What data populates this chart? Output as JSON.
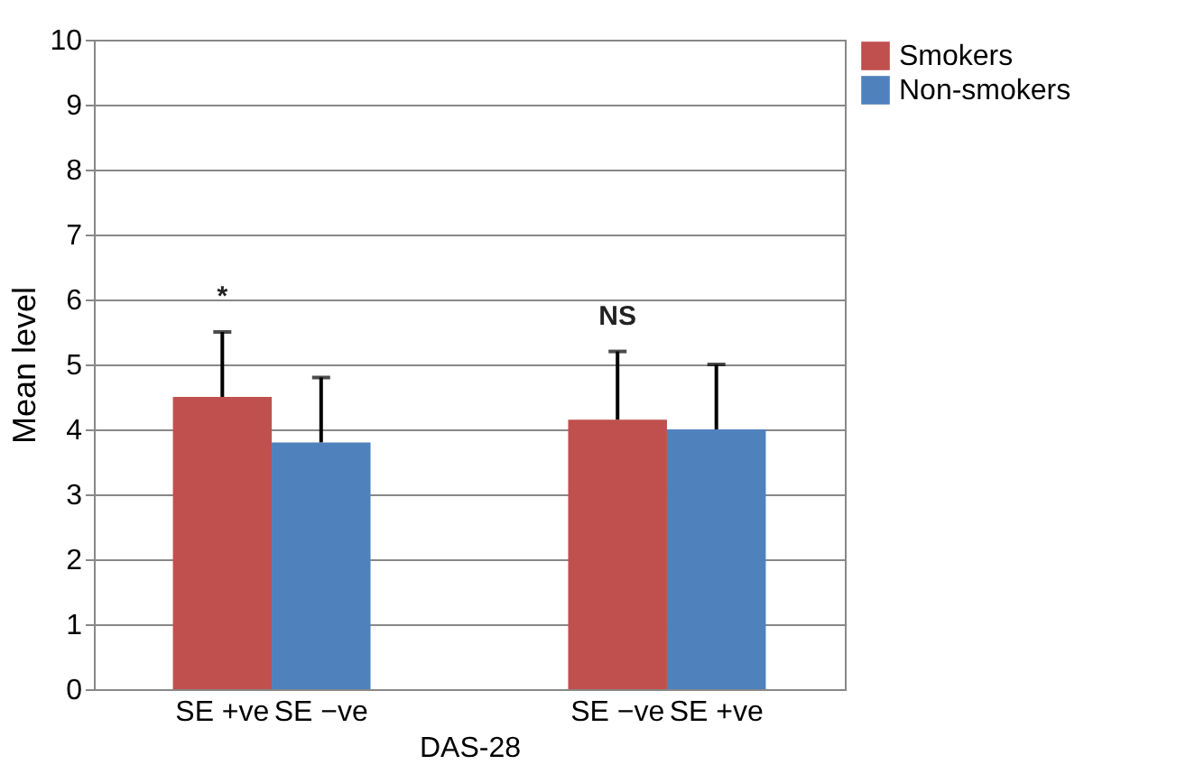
{
  "chart_data": {
    "type": "bar",
    "xlabel": "DAS-28",
    "ylabel": "Mean level",
    "categories": [
      "SE +ve",
      "SE −ve",
      null,
      null,
      "SE −ve",
      "SE +ve"
    ],
    "series": [
      {
        "name": "Smokers",
        "color": "#c0504d",
        "values": [
          4.5,
          null,
          null,
          null,
          4.15,
          null
        ],
        "errors": [
          [
            4.5,
            5.5
          ],
          null,
          null,
          null,
          [
            4.15,
            5.2
          ],
          null
        ]
      },
      {
        "name": "Non-smokers",
        "color": "#4f81bd",
        "values": [
          null,
          3.8,
          null,
          null,
          null,
          4.0
        ],
        "errors": [
          null,
          [
            3.8,
            4.8
          ],
          null,
          null,
          null,
          [
            4.0,
            5.0
          ]
        ]
      }
    ],
    "ylim": [
      0,
      10
    ],
    "yticks": [
      0,
      1,
      2,
      3,
      4,
      5,
      6,
      7,
      8,
      9,
      10
    ],
    "grid": "y",
    "legend": "top right",
    "annotations": [
      "*",
      "NS"
    ]
  }
}
